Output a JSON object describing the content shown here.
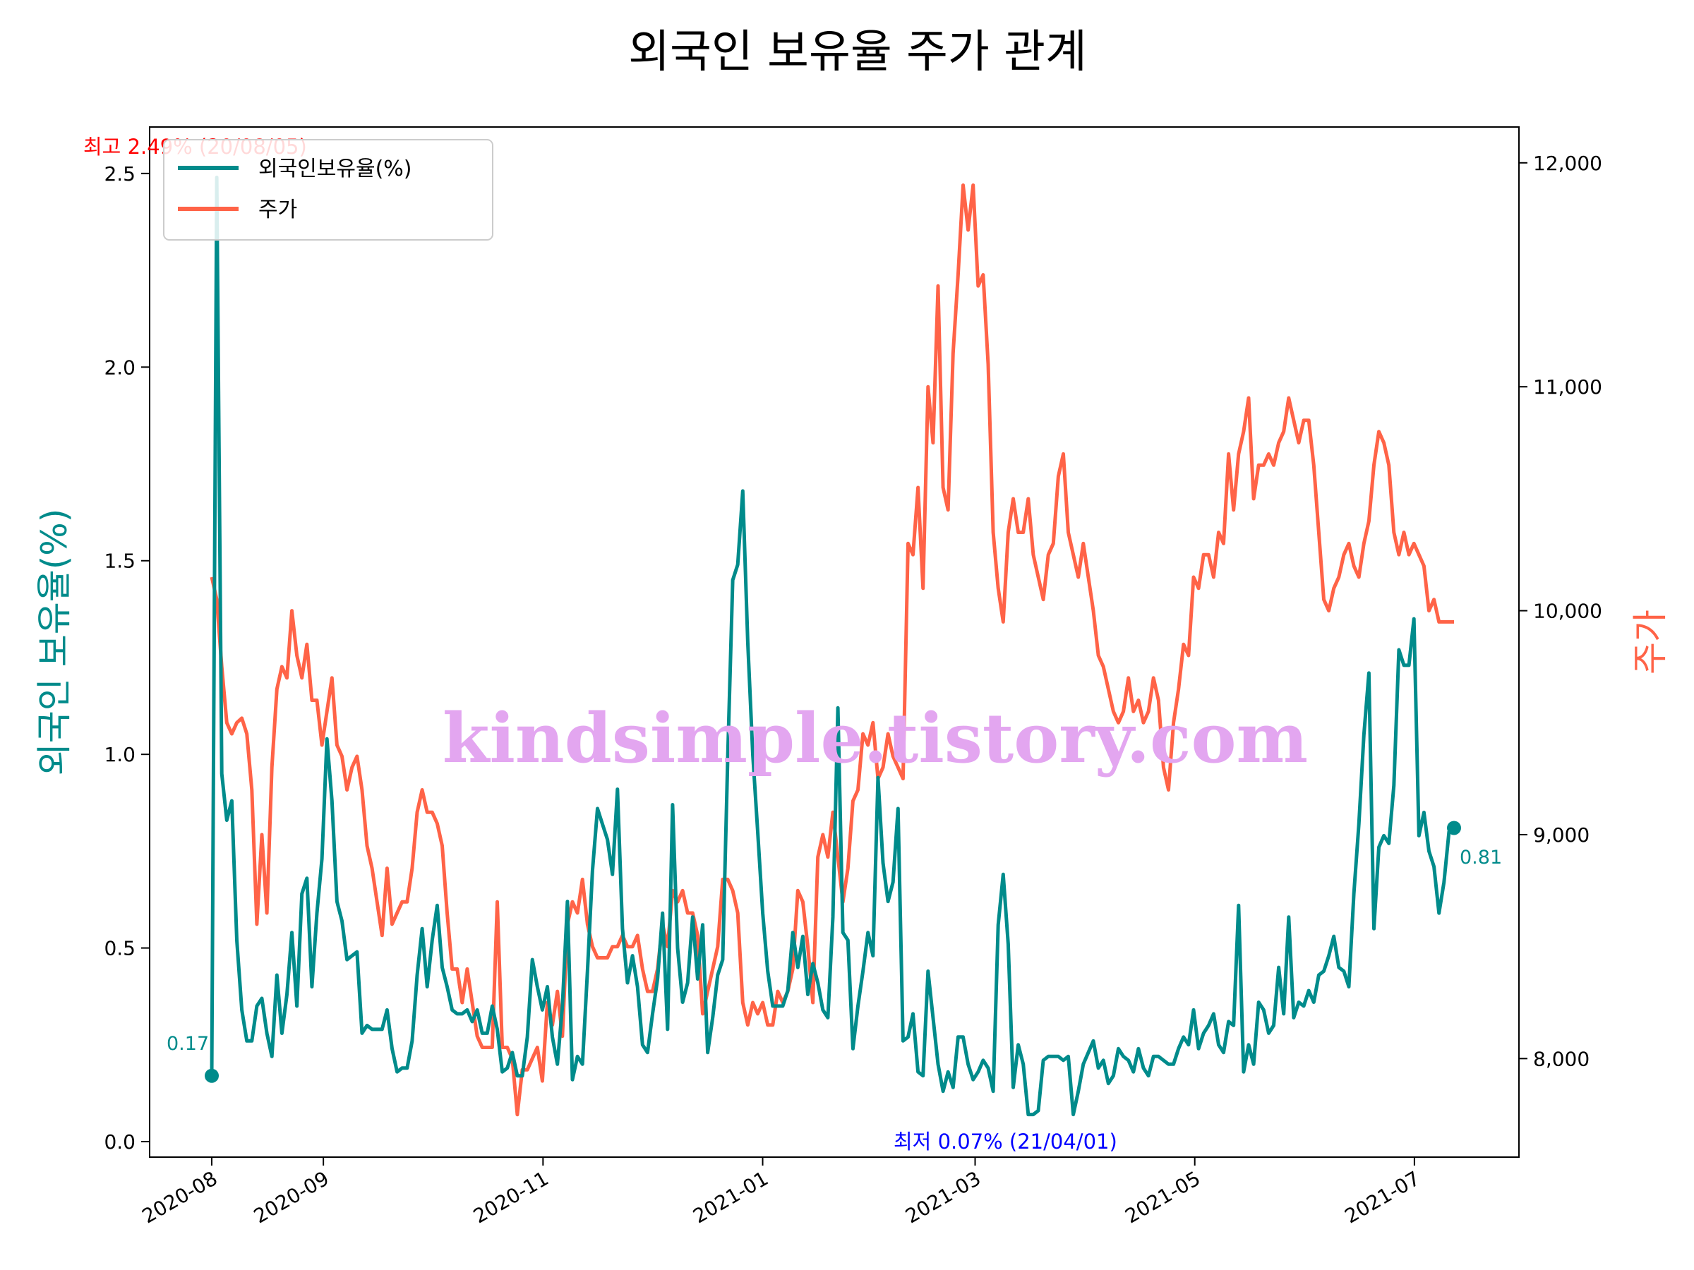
{
  "chart_data": {
    "type": "line",
    "title": "외국인 보유율 주가 관계",
    "ylabel": "외국인 보유율(%)",
    "y2label": "주가",
    "colors": {
      "ownership": "#008b8b",
      "price": "#ff6347",
      "max": "#ff0000",
      "min": "#0000ff"
    },
    "x_ticks": [
      "2020-08",
      "2020-09",
      "2020-11",
      "2021-01",
      "2021-03",
      "2021-05",
      "2021-07"
    ],
    "y_ticks": [
      "0.0",
      "0.5",
      "1.0",
      "1.5",
      "2.0",
      "2.5"
    ],
    "y2_ticks": [
      "8,000",
      "9,000",
      "10,000",
      "11,000",
      "12,000"
    ],
    "ylim": [
      -0.04,
      2.62
    ],
    "y2lim": [
      7560,
      12160
    ],
    "legend": [
      "외국인보유율(%)",
      "주가"
    ],
    "legend_position": "upper left",
    "grid": false,
    "series": [
      {
        "name": "외국인보유율(%)",
        "axis": "left",
        "values": [
          0.17,
          2.49,
          0.95,
          0.83,
          0.88,
          0.52,
          0.34,
          0.26,
          0.26,
          0.35,
          0.37,
          0.28,
          0.22,
          0.43,
          0.28,
          0.38,
          0.54,
          0.35,
          0.64,
          0.68,
          0.4,
          0.59,
          0.73,
          1.04,
          0.88,
          0.62,
          0.57,
          0.47,
          0.48,
          0.49,
          0.28,
          0.3,
          0.29,
          0.29,
          0.29,
          0.34,
          0.24,
          0.18,
          0.19,
          0.19,
          0.26,
          0.43,
          0.55,
          0.4,
          0.52,
          0.61,
          0.45,
          0.4,
          0.34,
          0.33,
          0.33,
          0.34,
          0.31,
          0.34,
          0.28,
          0.28,
          0.35,
          0.29,
          0.18,
          0.19,
          0.23,
          0.17,
          0.17,
          0.27,
          0.47,
          0.4,
          0.34,
          0.4,
          0.27,
          0.2,
          0.35,
          0.62,
          0.16,
          0.22,
          0.2,
          0.44,
          0.7,
          0.86,
          0.82,
          0.78,
          0.69,
          0.91,
          0.55,
          0.41,
          0.48,
          0.4,
          0.25,
          0.23,
          0.33,
          0.42,
          0.59,
          0.29,
          0.87,
          0.5,
          0.36,
          0.41,
          0.58,
          0.42,
          0.56,
          0.23,
          0.32,
          0.43,
          0.47,
          0.99,
          1.45,
          1.49,
          1.68,
          1.29,
          1.0,
          0.8,
          0.59,
          0.44,
          0.35,
          0.35,
          0.35,
          0.39,
          0.54,
          0.45,
          0.53,
          0.38,
          0.46,
          0.41,
          0.34,
          0.32,
          0.58,
          1.12,
          0.54,
          0.52,
          0.24,
          0.35,
          0.44,
          0.54,
          0.48,
          0.94,
          0.72,
          0.62,
          0.67,
          0.86,
          0.26,
          0.27,
          0.33,
          0.18,
          0.17,
          0.44,
          0.32,
          0.2,
          0.13,
          0.18,
          0.14,
          0.27,
          0.27,
          0.2,
          0.16,
          0.18,
          0.21,
          0.19,
          0.13,
          0.56,
          0.69,
          0.51,
          0.14,
          0.25,
          0.2,
          0.07,
          0.07,
          0.08,
          0.21,
          0.22,
          0.22,
          0.22,
          0.21,
          0.22,
          0.07,
          0.13,
          0.2,
          0.23,
          0.26,
          0.19,
          0.21,
          0.15,
          0.17,
          0.24,
          0.22,
          0.21,
          0.18,
          0.24,
          0.19,
          0.17,
          0.22,
          0.22,
          0.21,
          0.2,
          0.2,
          0.24,
          0.27,
          0.25,
          0.34,
          0.24,
          0.28,
          0.3,
          0.33,
          0.25,
          0.23,
          0.31,
          0.3,
          0.61,
          0.18,
          0.25,
          0.2,
          0.36,
          0.34,
          0.28,
          0.3,
          0.45,
          0.33,
          0.58,
          0.32,
          0.36,
          0.35,
          0.39,
          0.36,
          0.43,
          0.44,
          0.48,
          0.53,
          0.45,
          0.44,
          0.4,
          0.64,
          0.82,
          1.05,
          1.21,
          0.55,
          0.76,
          0.79,
          0.77,
          0.92,
          1.27,
          1.23,
          1.23,
          1.35,
          0.79,
          0.85,
          0.75,
          0.71,
          0.59,
          0.67,
          0.8,
          0.81
        ]
      },
      {
        "name": "주가",
        "axis": "right",
        "values": [
          10150,
          10050,
          9750,
          9500,
          9450,
          9500,
          9520,
          9450,
          9200,
          8600,
          9000,
          8650,
          9300,
          9650,
          9750,
          9700,
          10000,
          9800,
          9700,
          9850,
          9600,
          9600,
          9400,
          9550,
          9700,
          9400,
          9350,
          9200,
          9300,
          9350,
          9200,
          8950,
          8850,
          8700,
          8550,
          8850,
          8600,
          8650,
          8700,
          8700,
          8850,
          9100,
          9200,
          9100,
          9100,
          9050,
          8950,
          8650,
          8400,
          8400,
          8250,
          8400,
          8250,
          8100,
          8050,
          8050,
          8050,
          8700,
          8050,
          8050,
          8000,
          7750,
          7950,
          7950,
          8000,
          8050,
          7900,
          8250,
          8150,
          8300,
          8100,
          8600,
          8700,
          8650,
          8800,
          8600,
          8500,
          8450,
          8450,
          8450,
          8500,
          8500,
          8550,
          8500,
          8500,
          8550,
          8400,
          8300,
          8300,
          8400,
          8600,
          8500,
          8750,
          8700,
          8750,
          8650,
          8650,
          8550,
          8200,
          8300,
          8400,
          8500,
          8800,
          8800,
          8750,
          8650,
          8250,
          8150,
          8250,
          8200,
          8250,
          8150,
          8150,
          8300,
          8250,
          8300,
          8400,
          8750,
          8700,
          8500,
          8250,
          8900,
          9000,
          8900,
          9100,
          8900,
          8700,
          8850,
          9150,
          9200,
          9450,
          9400,
          9500,
          9250,
          9300,
          9450,
          9350,
          9300,
          9250,
          10300,
          10250,
          10550,
          10100,
          11000,
          10750,
          11450,
          10550,
          10450,
          11150,
          11500,
          11900,
          11700,
          11900,
          11450,
          11500,
          11100,
          10350,
          10100,
          9950,
          10350,
          10500,
          10350,
          10350,
          10500,
          10250,
          10150,
          10050,
          10250,
          10300,
          10600,
          10700,
          10350,
          10250,
          10150,
          10300,
          10150,
          10000,
          9800,
          9750,
          9650,
          9550,
          9500,
          9550,
          9700,
          9550,
          9600,
          9500,
          9550,
          9700,
          9600,
          9300,
          9200,
          9500,
          9650,
          9850,
          9800,
          10150,
          10100,
          10250,
          10250,
          10150,
          10350,
          10300,
          10700,
          10450,
          10700,
          10800,
          10950,
          10500,
          10650,
          10650,
          10700,
          10650,
          10750,
          10800,
          10950,
          10850,
          10750,
          10850,
          10850,
          10650,
          10350,
          10050,
          10000,
          10100,
          10150,
          10250,
          10300,
          10200,
          10150,
          10300,
          10400,
          10650,
          10800,
          10750,
          10650,
          10350,
          10250,
          10350,
          10250,
          10300,
          10250,
          10200,
          10000,
          10050,
          9950,
          9950,
          9950,
          9950
        ]
      }
    ],
    "annotations": {
      "max_label": "최고 2.49% (20/08/05)",
      "min_label": "최저 0.07% (21/04/01)",
      "start_label": "0.17",
      "end_label": "0.81"
    },
    "watermark": "kindsimple.tistory.com"
  }
}
